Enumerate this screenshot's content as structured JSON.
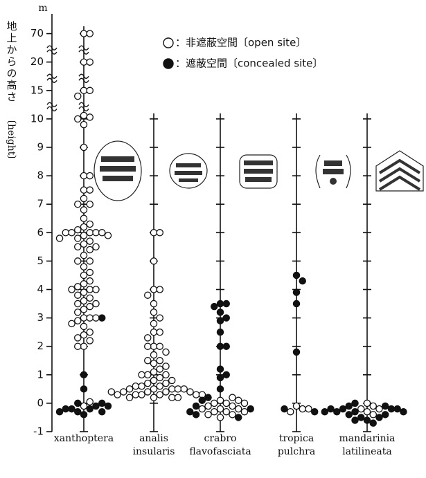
{
  "chart_data": {
    "type": "dot",
    "unit": "m",
    "y_label": "地上からの高さ",
    "y_label_en": "〔height〕",
    "categories": [
      [
        "xanthoptera"
      ],
      [
        "analis",
        "insularis"
      ],
      [
        "crabro",
        "flavofasciata"
      ],
      [
        "tropica",
        "pulchra"
      ],
      [
        "mandarinia",
        "latilineata"
      ]
    ],
    "y_scale": "broken",
    "ylim": [
      -1,
      70
    ],
    "yticks": [
      -1,
      0,
      1,
      2,
      3,
      4,
      5,
      6,
      7,
      8,
      9,
      10,
      15,
      20,
      70
    ],
    "series": [
      {
        "name": "：非遮蔽空間〔open site〕",
        "marker": "open",
        "color": "#111111",
        "values": [
          [
            70,
            70,
            20,
            20,
            15,
            15,
            14,
            10.6,
            10.3,
            10,
            9.8,
            9,
            8,
            8,
            7.5,
            7.5,
            7.2,
            7,
            7,
            6.8,
            6.5,
            6.3,
            6.2,
            6.1,
            6,
            6,
            6,
            6,
            6,
            5.9,
            5.9,
            5.8,
            5.8,
            5.7,
            5.6,
            5.5,
            5.5,
            5.4,
            5.2,
            5,
            5,
            4.8,
            4.6,
            4.5,
            4.3,
            4.2,
            4.1,
            4,
            4,
            4,
            3.9,
            3.8,
            3.7,
            3.6,
            3.5,
            3.5,
            3.4,
            3.3,
            3.2,
            3,
            3,
            3,
            2.9,
            2.8,
            2.7,
            2.5,
            2.4,
            2.3,
            2.2,
            2,
            2,
            -0.1,
            0.05
          ],
          [
            6,
            6,
            5,
            4,
            4,
            3.8,
            3.5,
            3.2,
            3,
            2.8,
            2.5,
            2.5,
            2.3,
            2,
            2,
            2,
            1.8,
            1.7,
            1.5,
            1.5,
            1.4,
            1.3,
            1.2,
            1.1,
            1,
            1,
            1,
            0.9,
            0.8,
            0.8,
            0.7,
            0.7,
            0.6,
            0.6,
            0.6,
            0.5,
            0.5,
            0.5,
            0.5,
            0.5,
            0.4,
            0.4,
            0.4,
            0.4,
            0.4,
            0.3,
            0.3,
            0.3,
            0.3,
            0.3,
            0.3,
            0.2,
            0.2,
            0.2,
            0.2
          ],
          [
            0.1,
            0,
            0,
            -0.1,
            -0.1,
            -0.2,
            -0.2,
            -0.3,
            -0.3,
            -0.4,
            -0.4,
            -0.5,
            0.2,
            -0.2,
            -0.3,
            0.1,
            0
          ],
          [
            -0.1,
            -0.2,
            -0.3,
            -0.2
          ],
          [
            0,
            -0.1,
            -0.2,
            -0.3,
            -0.4,
            -0.2
          ]
        ]
      },
      {
        "name": "：遮蔽空間〔concealed site〕",
        "marker": "filled",
        "color": "#111111",
        "values": [
          [
            3,
            1,
            0.5,
            0,
            -0.1,
            -0.2,
            -0.2,
            -0.3,
            -0.3,
            -0.2,
            -0.4,
            -0.1,
            0,
            -0.3
          ],
          [],
          [
            3.5,
            3.5,
            3.4,
            3.2,
            3,
            2.9,
            2.5,
            2,
            2,
            1.2,
            1,
            0.9,
            0.5,
            0.2,
            0.1,
            -0.1,
            -0.2,
            -0.3,
            -0.4,
            -0.5
          ],
          [
            4.5,
            4.3,
            3.9,
            3.5,
            1.8,
            -0.2,
            -0.3
          ],
          [
            0,
            -0.1,
            -0.1,
            -0.2,
            -0.2,
            -0.2,
            -0.3,
            -0.3,
            -0.3,
            -0.4,
            -0.4,
            -0.5,
            -0.5,
            -0.6,
            -0.6,
            -0.7,
            -0.2,
            -0.3
          ]
        ]
      }
    ]
  }
}
